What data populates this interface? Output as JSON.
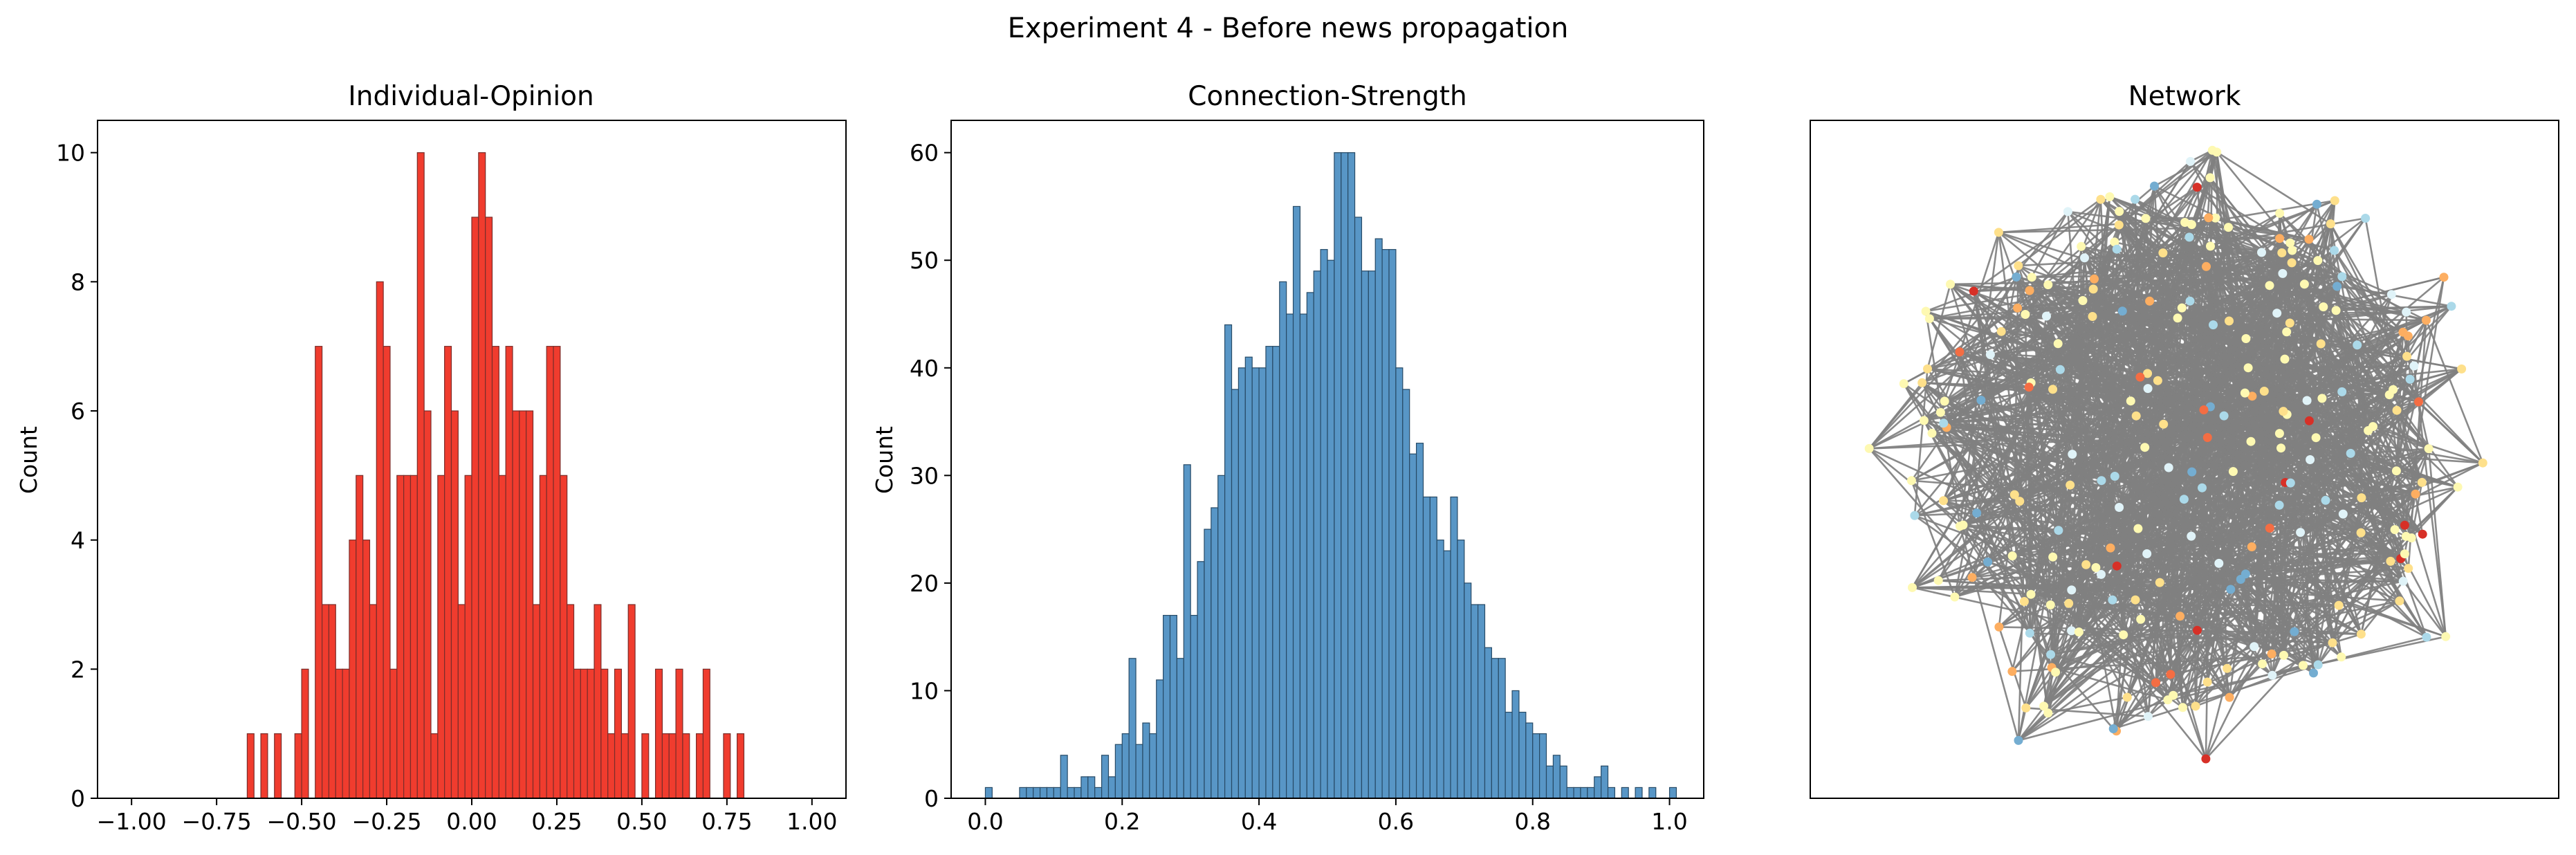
{
  "figure": {
    "suptitle": "Experiment 4 - Before news propagation"
  },
  "chart_data": [
    {
      "type": "bar",
      "title": "Individual-Opinion",
      "xlabel": "",
      "ylabel": "Count",
      "xlim": [
        -1.1,
        1.1
      ],
      "ylim": [
        0,
        10.5
      ],
      "bin_width": 0.02,
      "bar_color": "#f03c2e",
      "edge_color": "#7a2d2a",
      "x_ticks": [
        -1.0,
        -0.75,
        -0.5,
        -0.25,
        0.0,
        0.25,
        0.5,
        0.75,
        1.0
      ],
      "x_tick_labels": [
        "−1.00",
        "−0.75",
        "−0.50",
        "−0.25",
        "0.00",
        "0.25",
        "0.50",
        "0.75",
        "1.00"
      ],
      "y_ticks": [
        0,
        2,
        4,
        6,
        8,
        10
      ],
      "y_tick_labels": [
        "0",
        "2",
        "4",
        "6",
        "8",
        "10"
      ],
      "bins": [
        [
          -0.66,
          1
        ],
        [
          -0.62,
          1
        ],
        [
          -0.58,
          1
        ],
        [
          -0.52,
          1
        ],
        [
          -0.5,
          2
        ],
        [
          -0.46,
          7
        ],
        [
          -0.44,
          3
        ],
        [
          -0.42,
          3
        ],
        [
          -0.4,
          2
        ],
        [
          -0.38,
          2
        ],
        [
          -0.36,
          4
        ],
        [
          -0.34,
          5
        ],
        [
          -0.32,
          4
        ],
        [
          -0.3,
          3
        ],
        [
          -0.28,
          8
        ],
        [
          -0.26,
          7
        ],
        [
          -0.24,
          2
        ],
        [
          -0.22,
          5
        ],
        [
          -0.2,
          5
        ],
        [
          -0.18,
          5
        ],
        [
          -0.16,
          10
        ],
        [
          -0.14,
          6
        ],
        [
          -0.12,
          1
        ],
        [
          -0.1,
          5
        ],
        [
          -0.08,
          7
        ],
        [
          -0.06,
          6
        ],
        [
          -0.04,
          3
        ],
        [
          -0.02,
          5
        ],
        [
          0.0,
          9
        ],
        [
          0.02,
          10
        ],
        [
          0.04,
          9
        ],
        [
          0.06,
          7
        ],
        [
          0.08,
          5
        ],
        [
          0.1,
          7
        ],
        [
          0.12,
          6
        ],
        [
          0.14,
          6
        ],
        [
          0.16,
          6
        ],
        [
          0.18,
          3
        ],
        [
          0.2,
          5
        ],
        [
          0.22,
          7
        ],
        [
          0.24,
          7
        ],
        [
          0.26,
          5
        ],
        [
          0.28,
          3
        ],
        [
          0.3,
          2
        ],
        [
          0.32,
          2
        ],
        [
          0.34,
          2
        ],
        [
          0.36,
          3
        ],
        [
          0.38,
          2
        ],
        [
          0.4,
          1
        ],
        [
          0.42,
          2
        ],
        [
          0.44,
          1
        ],
        [
          0.46,
          3
        ],
        [
          0.5,
          1
        ],
        [
          0.54,
          2
        ],
        [
          0.56,
          1
        ],
        [
          0.58,
          1
        ],
        [
          0.6,
          2
        ],
        [
          0.62,
          1
        ],
        [
          0.66,
          1
        ],
        [
          0.68,
          2
        ],
        [
          0.74,
          1
        ],
        [
          0.78,
          1
        ]
      ]
    },
    {
      "type": "bar",
      "title": "Connection-Strength",
      "xlabel": "",
      "ylabel": "Count",
      "xlim": [
        -0.05,
        1.05
      ],
      "ylim": [
        0,
        63
      ],
      "bin_width": 0.01,
      "bar_color": "#5896c6",
      "edge_color": "#274a66",
      "x_ticks": [
        0.0,
        0.2,
        0.4,
        0.6,
        0.8,
        1.0
      ],
      "x_tick_labels": [
        "0.0",
        "0.2",
        "0.4",
        "0.6",
        "0.8",
        "1.0"
      ],
      "y_ticks": [
        0,
        10,
        20,
        30,
        40,
        50,
        60
      ],
      "y_tick_labels": [
        "0",
        "10",
        "20",
        "30",
        "40",
        "50",
        "60"
      ],
      "bins": [
        [
          0.0,
          1
        ],
        [
          0.05,
          1
        ],
        [
          0.06,
          1
        ],
        [
          0.07,
          1
        ],
        [
          0.08,
          1
        ],
        [
          0.09,
          1
        ],
        [
          0.1,
          1
        ],
        [
          0.11,
          4
        ],
        [
          0.12,
          1
        ],
        [
          0.13,
          1
        ],
        [
          0.14,
          2
        ],
        [
          0.15,
          2
        ],
        [
          0.16,
          1
        ],
        [
          0.17,
          4
        ],
        [
          0.18,
          2
        ],
        [
          0.19,
          5
        ],
        [
          0.2,
          6
        ],
        [
          0.21,
          13
        ],
        [
          0.22,
          5
        ],
        [
          0.23,
          7
        ],
        [
          0.24,
          6
        ],
        [
          0.25,
          11
        ],
        [
          0.26,
          17
        ],
        [
          0.27,
          17
        ],
        [
          0.28,
          13
        ],
        [
          0.29,
          31
        ],
        [
          0.3,
          17
        ],
        [
          0.31,
          22
        ],
        [
          0.32,
          25
        ],
        [
          0.33,
          27
        ],
        [
          0.34,
          30
        ],
        [
          0.35,
          44
        ],
        [
          0.36,
          38
        ],
        [
          0.37,
          40
        ],
        [
          0.38,
          41
        ],
        [
          0.39,
          40
        ],
        [
          0.4,
          40
        ],
        [
          0.41,
          42
        ],
        [
          0.42,
          42
        ],
        [
          0.43,
          48
        ],
        [
          0.44,
          45
        ],
        [
          0.45,
          55
        ],
        [
          0.46,
          45
        ],
        [
          0.47,
          47
        ],
        [
          0.48,
          49
        ],
        [
          0.49,
          51
        ],
        [
          0.5,
          50
        ],
        [
          0.51,
          60
        ],
        [
          0.52,
          60
        ],
        [
          0.53,
          60
        ],
        [
          0.54,
          54
        ],
        [
          0.55,
          49
        ],
        [
          0.56,
          49
        ],
        [
          0.57,
          52
        ],
        [
          0.58,
          51
        ],
        [
          0.59,
          51
        ],
        [
          0.6,
          40
        ],
        [
          0.61,
          38
        ],
        [
          0.62,
          32
        ],
        [
          0.63,
          33
        ],
        [
          0.64,
          28
        ],
        [
          0.65,
          28
        ],
        [
          0.66,
          24
        ],
        [
          0.67,
          23
        ],
        [
          0.68,
          28
        ],
        [
          0.69,
          24
        ],
        [
          0.7,
          20
        ],
        [
          0.71,
          18
        ],
        [
          0.72,
          18
        ],
        [
          0.73,
          14
        ],
        [
          0.74,
          13
        ],
        [
          0.75,
          13
        ],
        [
          0.76,
          8
        ],
        [
          0.77,
          10
        ],
        [
          0.78,
          8
        ],
        [
          0.79,
          7
        ],
        [
          0.8,
          6
        ],
        [
          0.81,
          6
        ],
        [
          0.82,
          3
        ],
        [
          0.83,
          4
        ],
        [
          0.84,
          3
        ],
        [
          0.85,
          1
        ],
        [
          0.86,
          1
        ],
        [
          0.87,
          1
        ],
        [
          0.88,
          1
        ],
        [
          0.89,
          2
        ],
        [
          0.9,
          3
        ],
        [
          0.91,
          1
        ],
        [
          0.93,
          1
        ],
        [
          0.95,
          1
        ],
        [
          0.97,
          1
        ],
        [
          1.0,
          1
        ]
      ]
    },
    {
      "type": "network",
      "title": "Network",
      "edge_color": "#808080",
      "node_palette": [
        "#fef9b2",
        "#fee08b",
        "#fdae61",
        "#f46d43",
        "#d73027",
        "#abd9e9",
        "#74add1",
        "#e0f3f8"
      ]
    }
  ]
}
